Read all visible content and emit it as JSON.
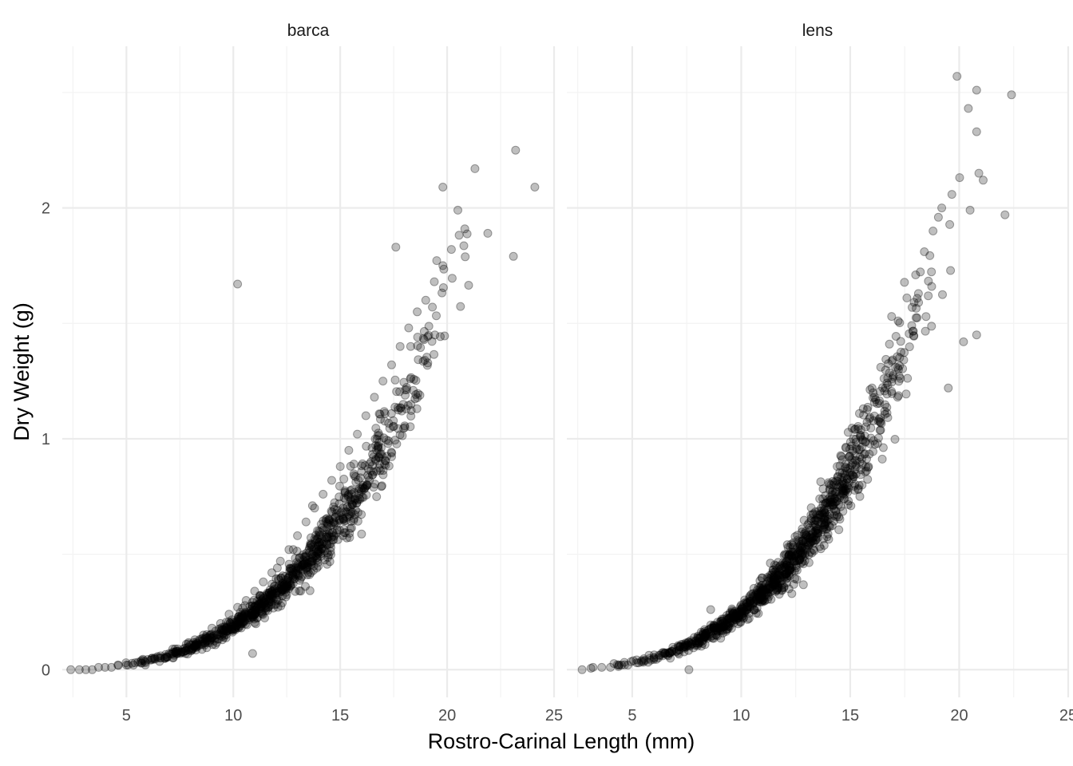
{
  "chart_data": {
    "type": "scatter",
    "xlabel": "Rostro-Carinal Length (mm)",
    "ylabel": "Dry Weight (g)",
    "xlim": [
      2,
      25
    ],
    "ylim": [
      -0.12,
      2.7
    ],
    "x_ticks": [
      5,
      10,
      15,
      20,
      25
    ],
    "y_ticks": [
      0,
      1,
      2
    ],
    "grid": true,
    "point_color": "#000000",
    "point_opacity": 0.25,
    "facets": [
      {
        "title": "barca",
        "n_points_approx": 900,
        "x_range": [
          2.4,
          24.1
        ],
        "model_fit_approx": "y ≈ 0.00017 · x^3.05",
        "points": [
          [
            2.4,
            0.0
          ],
          [
            2.8,
            0.0
          ],
          [
            3.1,
            0.0
          ],
          [
            3.4,
            0.0
          ],
          [
            3.7,
            0.01
          ],
          [
            4.0,
            0.01
          ],
          [
            4.3,
            0.01
          ],
          [
            4.6,
            0.02
          ],
          [
            5.0,
            0.02
          ],
          [
            5.4,
            0.03
          ],
          [
            5.8,
            0.04
          ],
          [
            6.2,
            0.05
          ],
          [
            6.6,
            0.06
          ],
          [
            7.0,
            0.07
          ],
          [
            7.4,
            0.09
          ],
          [
            7.8,
            0.11
          ],
          [
            8.2,
            0.13
          ],
          [
            8.6,
            0.15
          ],
          [
            9.0,
            0.18
          ],
          [
            9.4,
            0.2
          ],
          [
            9.8,
            0.24
          ],
          [
            10.2,
            0.27
          ],
          [
            10.6,
            0.3
          ],
          [
            11.0,
            0.34
          ],
          [
            11.4,
            0.38
          ],
          [
            11.8,
            0.42
          ],
          [
            12.2,
            0.47
          ],
          [
            12.6,
            0.52
          ],
          [
            13.0,
            0.58
          ],
          [
            13.4,
            0.64
          ],
          [
            13.8,
            0.7
          ],
          [
            14.2,
            0.76
          ],
          [
            14.6,
            0.82
          ],
          [
            15.0,
            0.88
          ],
          [
            15.4,
            0.95
          ],
          [
            15.8,
            1.02
          ],
          [
            16.2,
            1.1
          ],
          [
            16.6,
            1.18
          ],
          [
            17.0,
            1.25
          ],
          [
            17.4,
            1.32
          ],
          [
            17.8,
            1.4
          ],
          [
            18.2,
            1.48
          ],
          [
            18.6,
            1.55
          ],
          [
            19.0,
            1.6
          ],
          [
            19.4,
            1.68
          ],
          [
            19.8,
            1.75
          ],
          [
            20.2,
            1.82
          ],
          [
            10.2,
            1.67
          ],
          [
            10.9,
            0.07
          ],
          [
            17.6,
            1.83
          ],
          [
            19.8,
            2.09
          ],
          [
            21.3,
            2.17
          ],
          [
            23.2,
            2.25
          ],
          [
            24.1,
            2.09
          ],
          [
            23.1,
            1.79
          ],
          [
            21.9,
            1.89
          ],
          [
            20.5,
            1.99
          ],
          [
            13.7,
            0.71
          ],
          [
            12.8,
            0.52
          ],
          [
            14.0,
            0.6
          ]
        ]
      },
      {
        "title": "lens",
        "n_points_approx": 1000,
        "x_range": [
          2.7,
          22.4
        ],
        "model_fit_approx": "y ≈ 0.00022 · x^3.05",
        "points": [
          [
            2.7,
            0.0
          ],
          [
            3.2,
            0.01
          ],
          [
            3.6,
            0.01
          ],
          [
            4.0,
            0.01
          ],
          [
            4.4,
            0.02
          ],
          [
            4.8,
            0.02
          ],
          [
            5.2,
            0.03
          ],
          [
            5.6,
            0.04
          ],
          [
            6.0,
            0.05
          ],
          [
            6.4,
            0.06
          ],
          [
            6.8,
            0.08
          ],
          [
            7.2,
            0.1
          ],
          [
            7.6,
            0.12
          ],
          [
            8.0,
            0.14
          ],
          [
            8.4,
            0.16
          ],
          [
            8.8,
            0.19
          ],
          [
            9.2,
            0.22
          ],
          [
            9.6,
            0.25
          ],
          [
            10.0,
            0.28
          ],
          [
            10.4,
            0.32
          ],
          [
            10.8,
            0.36
          ],
          [
            11.2,
            0.4
          ],
          [
            11.6,
            0.45
          ],
          [
            12.0,
            0.5
          ],
          [
            12.4,
            0.55
          ],
          [
            12.8,
            0.61
          ],
          [
            13.2,
            0.67
          ],
          [
            13.6,
            0.74
          ],
          [
            14.0,
            0.81
          ],
          [
            14.4,
            0.88
          ],
          [
            14.8,
            0.96
          ],
          [
            15.2,
            1.04
          ],
          [
            15.6,
            1.13
          ],
          [
            16.0,
            1.22
          ],
          [
            16.4,
            1.31
          ],
          [
            16.8,
            1.41
          ],
          [
            17.2,
            1.51
          ],
          [
            17.6,
            1.61
          ],
          [
            18.0,
            1.71
          ],
          [
            18.4,
            1.81
          ],
          [
            18.8,
            1.9
          ],
          [
            19.2,
            2.0
          ],
          [
            19.9,
            2.57
          ],
          [
            20.8,
            2.51
          ],
          [
            22.4,
            2.49
          ],
          [
            20.8,
            2.33
          ],
          [
            20.9,
            2.15
          ],
          [
            21.1,
            2.12
          ],
          [
            22.1,
            1.97
          ],
          [
            20.5,
            1.99
          ],
          [
            20.8,
            1.45
          ],
          [
            20.2,
            1.42
          ],
          [
            19.5,
            1.22
          ],
          [
            16.9,
            1.53
          ],
          [
            8.6,
            0.26
          ],
          [
            10.4,
            0.28
          ],
          [
            7.6,
            0.0
          ]
        ]
      }
    ]
  }
}
